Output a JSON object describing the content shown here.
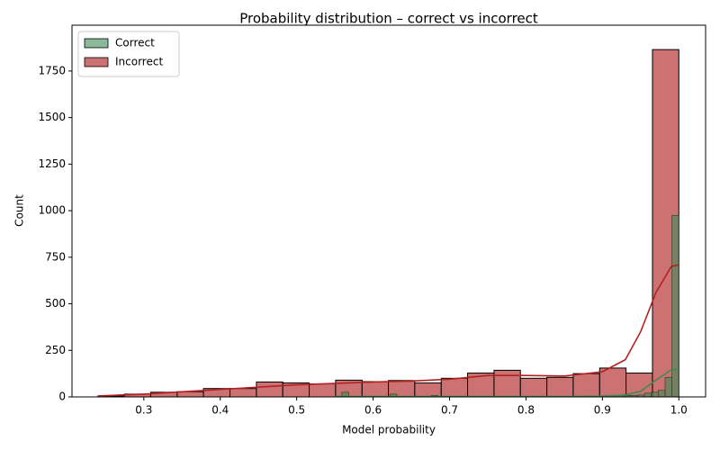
{
  "chart_data": {
    "type": "histogram",
    "title": "Probability distribution – correct vs incorrect",
    "xlabel": "Model probability",
    "ylabel": "Count",
    "xlim": [
      0.206,
      1.035
    ],
    "ylim": [
      0,
      1996
    ],
    "xticks": [
      0.3,
      0.4,
      0.5,
      0.6,
      0.7,
      0.8,
      0.9,
      {
        "value": 1,
        "label": "1.0"
      }
    ],
    "yticks": [
      0,
      250,
      500,
      750,
      1000,
      1250,
      1500,
      1750
    ],
    "legend": "upper left",
    "series": [
      {
        "name": "Incorrect",
        "color": "#cd7272",
        "line_color": "#b22222",
        "bins": [
          0.24,
          0.2745,
          0.309,
          0.3436,
          0.378,
          0.4127,
          0.4473,
          0.4818,
          0.5164,
          0.5509,
          0.5855,
          0.62,
          0.6545,
          0.6891,
          0.7236,
          0.7582,
          0.7927,
          0.8273,
          0.8618,
          0.8964,
          0.9309,
          0.9655,
          1.0
        ],
        "values": [
          5,
          15,
          25,
          28,
          45,
          45,
          80,
          75,
          70,
          90,
          82,
          88,
          75,
          100,
          128,
          143,
          100,
          105,
          125,
          155,
          128,
          1865
        ],
        "kde_x": [
          0.24,
          0.3,
          0.4,
          0.5,
          0.6,
          0.65,
          0.7,
          0.75,
          0.8,
          0.85,
          0.9,
          0.93,
          0.95,
          0.97,
          0.99,
          1.0
        ],
        "kde_values": [
          5,
          15,
          40,
          65,
          80,
          85,
          95,
          115,
          115,
          112,
          135,
          200,
          350,
          560,
          700,
          710
        ]
      },
      {
        "name": "Correct",
        "color": "#3d8a55",
        "line_color": "#3d8a55",
        "bins": [
          0.55,
          0.559,
          0.568,
          0.577,
          0.586,
          0.595,
          0.604,
          0.613,
          0.622,
          0.631,
          0.64,
          0.649,
          0.658,
          0.667,
          0.676,
          0.685,
          0.694,
          0.703,
          0.712,
          0.721,
          0.73,
          0.739,
          0.748,
          0.757,
          0.766,
          0.775,
          0.784,
          0.793,
          0.802,
          0.811,
          0.82,
          0.829,
          0.838,
          0.847,
          0.856,
          0.865,
          0.874,
          0.883,
          0.892,
          0.901,
          0.91,
          0.919,
          0.928,
          0.937,
          0.946,
          0.955,
          0.964,
          0.973,
          0.982,
          0.991,
          1.0
        ],
        "values": [
          2,
          25,
          0,
          2,
          0,
          3,
          0,
          2,
          15,
          0,
          2,
          0,
          3,
          0,
          8,
          0,
          2,
          0,
          3,
          0,
          0,
          2,
          0,
          3,
          0,
          2,
          0,
          3,
          0,
          2,
          3,
          0,
          2,
          0,
          3,
          2,
          3,
          4,
          3,
          5,
          5,
          6,
          8,
          8,
          10,
          20,
          25,
          35,
          105,
          975
        ],
        "kde_x": [
          0.55,
          0.7,
          0.85,
          0.9,
          0.93,
          0.95,
          0.97,
          0.99,
          1.0
        ],
        "kde_values": [
          2,
          2,
          2,
          4,
          10,
          30,
          90,
          145,
          148
        ]
      }
    ]
  }
}
